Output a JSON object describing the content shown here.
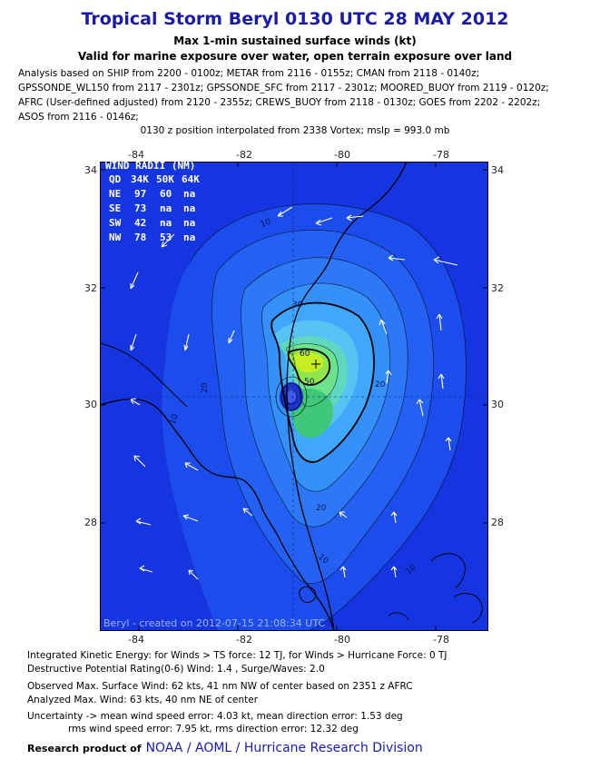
{
  "title": "Tropical Storm Beryl 0130 UTC 28 MAY 2012",
  "subtitle1": "Max 1-min sustained surface winds (kt)",
  "subtitle2": "Valid for marine exposure over water, open terrain exposure over land",
  "analysis_lines": [
    "Analysis based on SHIP from 2200 - 0100z; METAR from 2116 - 0155z; CMAN from 2118 - 0140z;",
    "GPSSONDE_WL150 from 2117 - 2301z; GPSSONDE_SFC from 2117 - 2301z; MOORED_BUOY from 2119 - 0120z;",
    "AFRC (User-defined adjusted) from 2120 - 2355z; CREWS_BUOY from 2118 - 0130z; GOES from 2202 - 2202z;",
    "ASOS from 2116 - 0146z;"
  ],
  "position_note": "0130 z position interpolated from 2338 Vortex; mslp = 993.0 mb",
  "axes": {
    "lon_ticks": [
      "-84",
      "-82",
      "-80",
      "-78"
    ],
    "lat_ticks": [
      "34",
      "32",
      "30",
      "28"
    ]
  },
  "wind_radii": {
    "title": "WIND RADII (NM)",
    "header": [
      "QD",
      "34K",
      "50K",
      "64K"
    ],
    "rows": [
      [
        "NE",
        "97",
        "60",
        "na"
      ],
      [
        "SE",
        "73",
        "na",
        "na"
      ],
      [
        "SW",
        "42",
        "na",
        "na"
      ],
      [
        "NW",
        "78",
        "53",
        "na"
      ]
    ]
  },
  "contour_labels": [
    "10",
    "10",
    "10",
    "10",
    "20",
    "20",
    "20",
    "30",
    "50",
    "60"
  ],
  "credit": "Beryl - created on 2012-07-15 21:08:34 UTC",
  "footer": {
    "ike": "Integrated Kinetic Energy: for Winds > TS force: 12 TJ, for Winds > Hurricane Force: 0 TJ",
    "dpr": "Destructive Potential Rating(0-6)  Wind: 1.4 , Surge/Waves: 2.0",
    "observed": "Observed Max. Surface Wind: 62 kts, 41 nm NW of center based on 2351 z AFRC",
    "analyzed": "Analyzed Max. Wind: 63 kts, 40 nm  NE of center",
    "uncertainty1": "Uncertainty -> mean wind speed error: 4.03 kt, mean direction error: 1.53 deg",
    "uncertainty2": "rms wind speed error: 7.95 kt, rms direction error: 12.32 deg",
    "research_lead": "Research product of",
    "research_org": "NOAA / AOML / Hurricane Research Division"
  },
  "colors": {
    "title": "#1a1aaa",
    "ocean_base": "#1535e0",
    "gust_peak": "#c8ee20",
    "coastline": "#000000"
  }
}
